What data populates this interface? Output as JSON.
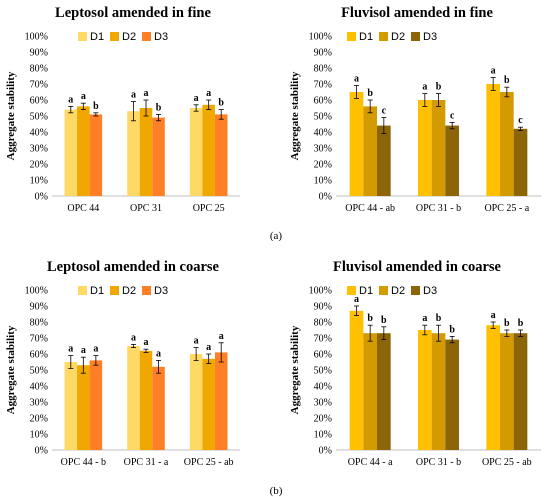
{
  "chart_data": [
    {
      "type": "bar",
      "title": "Leptosol amended in fine",
      "ylabel": "Aggregate stability",
      "categories": [
        "OPC 44",
        "OPC 31",
        "OPC 25"
      ],
      "ylim": [
        0,
        100
      ],
      "yticks": [
        "0%",
        "10%",
        "20%",
        "30%",
        "40%",
        "50%",
        "60%",
        "70%",
        "80%",
        "90%",
        "100%"
      ],
      "series": [
        {
          "name": "D1",
          "color": "#ffd966",
          "values": [
            54,
            53,
            55
          ],
          "errors": [
            2,
            6,
            2
          ],
          "letters": [
            "a",
            "a",
            "a"
          ]
        },
        {
          "name": "D2",
          "color": "#f0a800",
          "values": [
            56,
            55,
            57
          ],
          "errors": [
            2,
            5,
            3
          ],
          "letters": [
            "a",
            "a",
            "a"
          ]
        },
        {
          "name": "D3",
          "color": "#ff7f27",
          "values": [
            51,
            49,
            51
          ],
          "errors": [
            1,
            2,
            3
          ],
          "letters": [
            "b",
            "b",
            "b"
          ]
        }
      ]
    },
    {
      "type": "bar",
      "title": "Fluvisol amended in fine",
      "ylabel": "Aggregate stability",
      "categories": [
        "OPC 44 - ab",
        "OPC 31 - b",
        "OPC 25 - a"
      ],
      "ylim": [
        0,
        100
      ],
      "yticks": [
        "0%",
        "10%",
        "20%",
        "30%",
        "40%",
        "50%",
        "60%",
        "70%",
        "80%",
        "90%",
        "100%"
      ],
      "series": [
        {
          "name": "D1",
          "color": "#ffc000",
          "values": [
            65,
            60,
            70
          ],
          "errors": [
            4,
            4,
            4
          ],
          "letters": [
            "a",
            "a",
            "a"
          ]
        },
        {
          "name": "D2",
          "color": "#d49b00",
          "values": [
            56,
            60,
            65
          ],
          "errors": [
            4,
            4,
            3
          ],
          "letters": [
            "b",
            "b",
            "b"
          ]
        },
        {
          "name": "D3",
          "color": "#8b6508",
          "values": [
            44,
            44,
            42
          ],
          "errors": [
            5,
            2,
            1
          ],
          "letters": [
            "c",
            "c",
            "c"
          ]
        }
      ]
    },
    {
      "type": "bar",
      "title": "Leptosol amended in coarse",
      "ylabel": "Aggregate stability",
      "categories": [
        "OPC 44 - b",
        "OPC 31 - a",
        "OPC 25 - ab"
      ],
      "ylim": [
        0,
        100
      ],
      "yticks": [
        "0%",
        "10%",
        "20%",
        "30%",
        "40%",
        "50%",
        "60%",
        "70%",
        "80%",
        "90%",
        "100%"
      ],
      "series": [
        {
          "name": "D1",
          "color": "#ffd966",
          "values": [
            55,
            65,
            60
          ],
          "errors": [
            4,
            1,
            4
          ],
          "letters": [
            "a",
            "a",
            "a"
          ]
        },
        {
          "name": "D2",
          "color": "#f0a800",
          "values": [
            53,
            62,
            57
          ],
          "errors": [
            5,
            1,
            3
          ],
          "letters": [
            "a",
            "a",
            "a"
          ]
        },
        {
          "name": "D3",
          "color": "#ff7f27",
          "values": [
            56,
            52,
            61
          ],
          "errors": [
            3,
            4,
            6
          ],
          "letters": [
            "a",
            "a",
            "a"
          ]
        }
      ]
    },
    {
      "type": "bar",
      "title": "Fluvisol amended in coarse",
      "ylabel": "Aggregate stability",
      "categories": [
        "OPC 44 - a",
        "OPC 31 - b",
        "OPC 25 - ab"
      ],
      "ylim": [
        0,
        100
      ],
      "yticks": [
        "0%",
        "10%",
        "20%",
        "30%",
        "40%",
        "50%",
        "60%",
        "70%",
        "80%",
        "90%",
        "100%"
      ],
      "series": [
        {
          "name": "D1",
          "color": "#ffc000",
          "values": [
            87,
            75,
            78
          ],
          "errors": [
            3,
            3,
            2
          ],
          "letters": [
            "a",
            "a",
            "a"
          ]
        },
        {
          "name": "D2",
          "color": "#d49b00",
          "values": [
            73,
            73,
            73
          ],
          "errors": [
            5,
            5,
            2
          ],
          "letters": [
            "b",
            "b",
            "b"
          ]
        },
        {
          "name": "D3",
          "color": "#8b6508",
          "values": [
            73,
            69,
            73
          ],
          "errors": [
            4,
            2,
            2
          ],
          "letters": [
            "b",
            "b",
            "b"
          ]
        }
      ]
    }
  ],
  "subfigure_labels": [
    "(a)",
    "(b)"
  ]
}
